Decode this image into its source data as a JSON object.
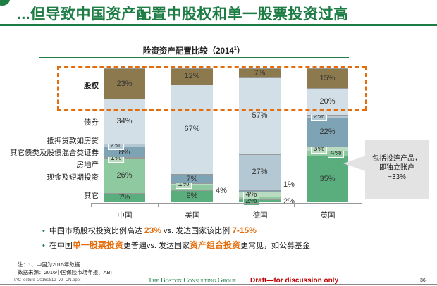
{
  "header": {
    "title": "...但导致中国资产配置中股权和单一股票投资过高"
  },
  "chart_data": {
    "type": "bar",
    "stacked": true,
    "title": "险资资产配置比较（2014",
    "title_sup": "1",
    "title_end": "）",
    "categories": [
      "中国",
      "美国",
      "德国",
      "英国"
    ],
    "series": [
      {
        "name": "其它",
        "color": "#5aae7e",
        "values": [
          7,
          9,
          2,
          35
        ]
      },
      {
        "name": "现金及短期投资",
        "color": "#8fc9a0",
        "values": [
          26,
          4,
          2,
          4
        ]
      },
      {
        "name": "房地产",
        "color": "#b9dcc0",
        "values": [
          1,
          1,
          4,
          3
        ]
      },
      {
        "name": "其它债类及股债混合类证券",
        "color": "#7ea3b5",
        "values": [
          8,
          7,
          1,
          22
        ]
      },
      {
        "name": "抵押贷款如房贷",
        "color": "#b4c8d3",
        "values": [
          2,
          0,
          27,
          2
        ]
      },
      {
        "name": "债券",
        "color": "#d3dfe6",
        "values": [
          34,
          67,
          57,
          20
        ]
      },
      {
        "name": "股权",
        "color": "#8c7a4e",
        "values": [
          23,
          12,
          7,
          15
        ]
      }
    ],
    "outside_labels": [
      [
        false,
        false,
        false,
        false,
        false,
        false,
        false
      ],
      [
        false,
        true,
        false,
        false,
        false,
        false,
        false
      ],
      [
        false,
        true,
        false,
        true,
        false,
        false,
        false
      ],
      [
        false,
        false,
        false,
        false,
        false,
        false,
        false
      ]
    ],
    "highlight": "股权",
    "callout": [
      "包括投连产品，",
      "即独立账户",
      "~33%"
    ]
  },
  "bullets": [
    {
      "parts": [
        {
          "t": "中国市场股权投资比例高达 "
        },
        {
          "t": "23%",
          "hl": true
        },
        {
          "t": " vs. 发达国家该比例 "
        },
        {
          "t": "7-15%",
          "hl": true
        }
      ]
    },
    {
      "parts": [
        {
          "t": "在中国"
        },
        {
          "t": "单一股票投资",
          "hl": true
        },
        {
          "t": "更普遍vs. 发达国家"
        },
        {
          "t": "资产组合投资",
          "hl": true
        },
        {
          "t": "更常见，如公募基金"
        }
      ]
    }
  ],
  "footer": {
    "note": "注：1、中国为2015年数据",
    "source": "数据来源：2016中国保险市场年报、ABI",
    "file": "IAC lecture_20160812_v9_CN.pptx",
    "brand": "The Boston Consulting Group",
    "draft": "Draft—for discussion only",
    "page": "36"
  }
}
